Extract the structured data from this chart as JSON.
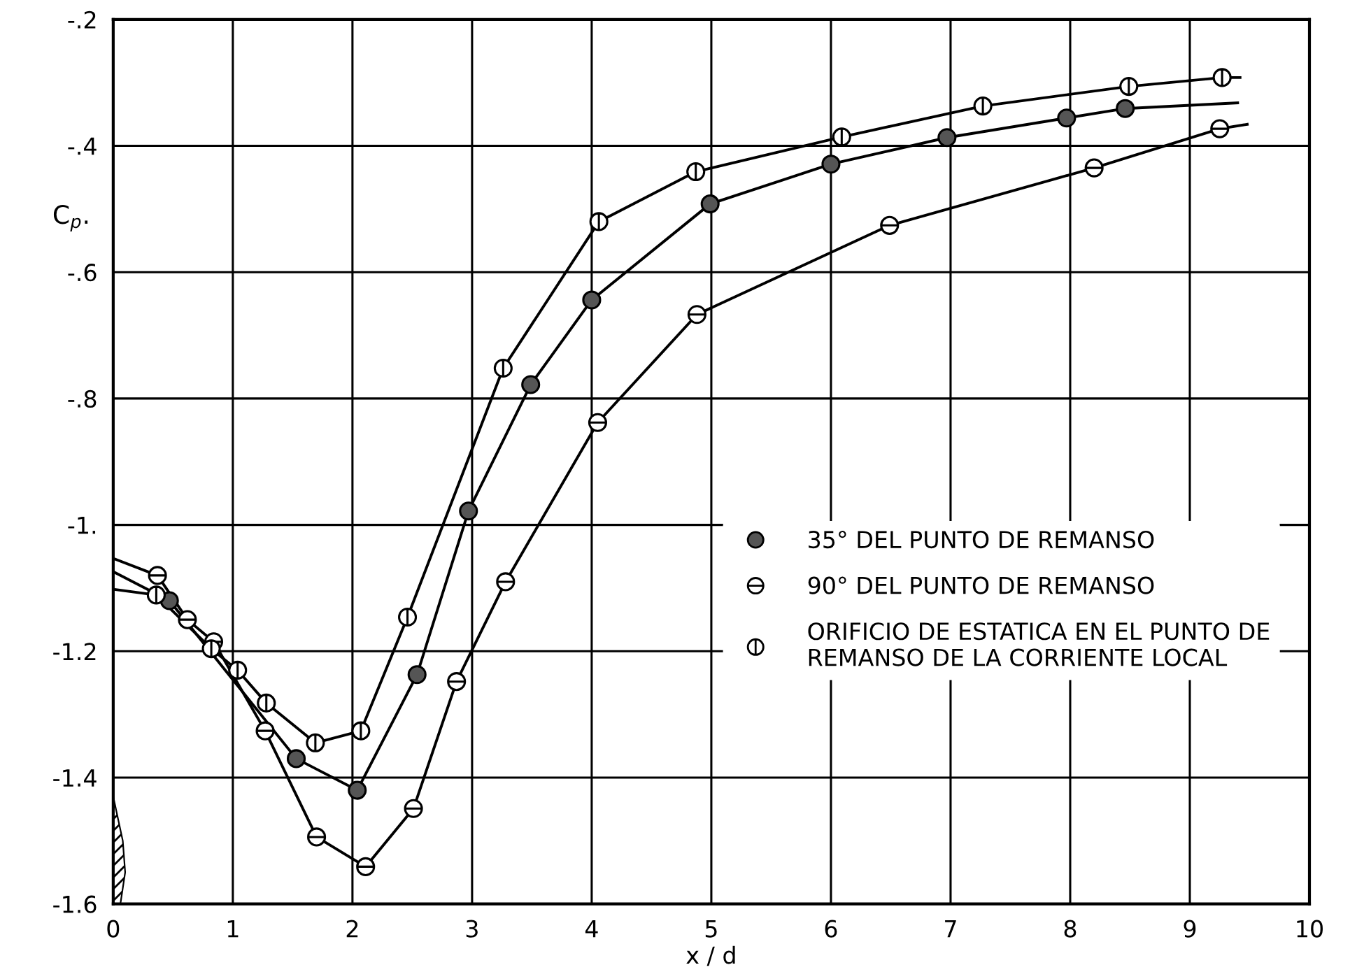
{
  "chart_data": {
    "type": "scatter",
    "xlabel": "x / d",
    "ylabel": "C$_{p}$.",
    "xlim": [
      0,
      10
    ],
    "ylim": [
      -1.6,
      -0.2
    ],
    "xticks": [
      0,
      1,
      2,
      3,
      4,
      5,
      6,
      7,
      8,
      9,
      10
    ],
    "yticks": [
      {
        "value": -1.6,
        "label": "-1.6"
      },
      {
        "value": -1.4,
        "label": "-1.4"
      },
      {
        "value": -1.2,
        "label": "-1.2"
      },
      {
        "value": -1.0,
        "label": "-1."
      },
      {
        "value": -0.8,
        "label": "-.8"
      },
      {
        "value": -0.6,
        "label": "-.6"
      },
      {
        "value": -0.4,
        "label": "-.4"
      },
      {
        "value": -0.2,
        "label": "-.2"
      }
    ],
    "grid": true,
    "legend": "bottom right",
    "series": [
      {
        "type": "line",
        "color": "#000000",
        "marker": "none",
        "x": [
          0,
          0.47,
          1.0,
          1.53,
          2.04,
          2.54,
          2.97,
          3.49,
          4.0,
          4.99,
          6.0,
          6.97,
          7.97,
          8.46,
          9.4
        ],
        "values": [
          -1.074,
          -1.12,
          -1.245,
          -1.37,
          -1.42,
          -1.237,
          -0.978,
          -0.778,
          -0.644,
          -0.492,
          -0.429,
          -0.387,
          -0.356,
          -0.341,
          -0.332
        ]
      },
      {
        "type": "line",
        "color": "#000000",
        "marker": "none",
        "x": [
          0,
          0.37,
          0.62,
          0.84,
          1.27,
          1.7,
          2.11,
          2.51,
          2.87,
          3.28,
          4.05,
          4.88,
          6.49,
          8.2,
          9.25,
          9.48
        ],
        "values": [
          -1.053,
          -1.08,
          -1.15,
          -1.185,
          -1.326,
          -1.494,
          -1.541,
          -1.449,
          -1.248,
          -1.09,
          -0.838,
          -0.667,
          -0.526,
          -0.435,
          -0.373,
          -0.366
        ]
      },
      {
        "type": "line",
        "color": "#000000",
        "marker": "none",
        "x": [
          0,
          0.36,
          0.82,
          1.04,
          1.28,
          1.69,
          2.07,
          2.46,
          3.26,
          4.06,
          4.87,
          6.09,
          7.27,
          8.49,
          9.27,
          9.42
        ],
        "values": [
          -1.102,
          -1.111,
          -1.196,
          -1.23,
          -1.282,
          -1.345,
          -1.326,
          -1.146,
          -0.752,
          -0.52,
          -0.441,
          -0.386,
          -0.337,
          -0.306,
          -0.292,
          -0.292
        ]
      },
      {
        "name": "35° DEL PUNTO DE REMANSO",
        "color": "#555555",
        "marker": "circle",
        "x": [
          0.47,
          1.53,
          2.04,
          2.54,
          2.97,
          3.49,
          4.0,
          4.99,
          6.0,
          6.97,
          7.97,
          8.46
        ],
        "values": [
          -1.12,
          -1.37,
          -1.42,
          -1.237,
          -0.978,
          -0.778,
          -0.644,
          -0.492,
          -0.429,
          -0.387,
          -0.356,
          -0.341
        ]
      },
      {
        "name": "90° DEL PUNTO DE REMANSO",
        "color": "#ffffff",
        "marker": "cross",
        "x": [
          0.37,
          0.62,
          0.84,
          1.27,
          1.7,
          2.11,
          2.51,
          2.87,
          3.28,
          4.05,
          4.88,
          6.49,
          8.2,
          9.25
        ],
        "values": [
          -1.08,
          -1.15,
          -1.185,
          -1.326,
          -1.494,
          -1.541,
          -1.449,
          -1.248,
          -1.09,
          -0.838,
          -0.667,
          -0.526,
          -0.435,
          -0.373
        ]
      },
      {
        "name": "ORIFICIO DE ESTATICA EN EL PUNTO DE\nREMANSO DE LA CORRIENTE LOCAL",
        "color": "#ffffff",
        "marker": "cross",
        "x": [
          0.36,
          0.82,
          1.04,
          1.28,
          1.69,
          2.07,
          2.46,
          3.26,
          4.06,
          4.87,
          6.09,
          7.27,
          8.49,
          9.27
        ],
        "values": [
          -1.111,
          -1.196,
          -1.23,
          -1.282,
          -1.345,
          -1.326,
          -1.146,
          -0.752,
          -0.52,
          -0.441,
          -0.386,
          -0.337,
          -0.306,
          -0.292
        ]
      }
    ]
  }
}
